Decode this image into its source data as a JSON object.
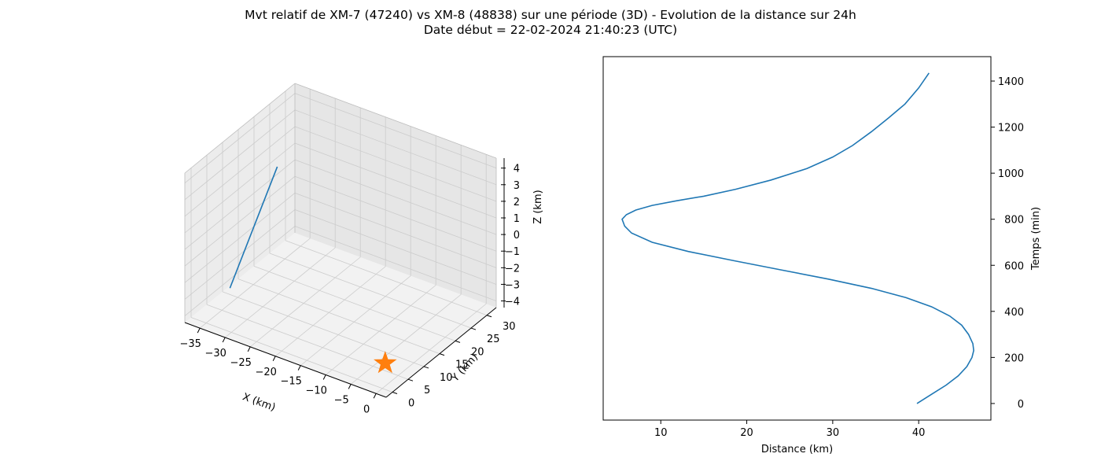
{
  "title": "Mvt relatif de XM-7 (47240) vs XM-8 (48838) sur une période (3D) - Evolution de la distance sur 24h",
  "subtitle": "Date début = 22-02-2024 21:40:23 (UTC)",
  "colors": {
    "line": "#1f77b4",
    "star": "#ff7f0e",
    "grid": "#cccccc",
    "pane": "#f2f2f2"
  },
  "chart_data": [
    {
      "type": "line3d",
      "xlabel": "X (km)",
      "ylabel": "Y (km)",
      "zlabel": "Z (km)",
      "x_ticks": [
        "−35",
        "−30",
        "−25",
        "−20",
        "−15",
        "−10",
        "−5",
        "0"
      ],
      "y_ticks": [
        "0",
        "5",
        "10",
        "15",
        "20",
        "25",
        "30"
      ],
      "z_ticks": [
        "−4",
        "−3",
        "−2",
        "−1",
        "0",
        "1",
        "2",
        "3",
        "4"
      ],
      "xlim": [
        -38,
        2
      ],
      "ylim": [
        -2,
        33
      ],
      "zlim": [
        -4.4,
        4.6
      ],
      "series": [
        {
          "points": [
            [
              -32.6,
              3.7,
              -2.6
            ],
            [
              -27.0,
              9.8,
              4.4
            ]
          ]
        }
      ],
      "marker": {
        "shape": "star",
        "point": [
          -0.5,
          1.7,
          -3.2
        ]
      }
    },
    {
      "type": "line",
      "xlabel": "Distance (km)",
      "ylabel": "Temps (min)",
      "x_ticks": [
        "10",
        "20",
        "30",
        "40"
      ],
      "y_ticks": [
        "0",
        "200",
        "400",
        "600",
        "800",
        "1000",
        "1200",
        "1400"
      ],
      "xlim": [
        3.3,
        48.4
      ],
      "ylim": [
        -72,
        1506
      ],
      "series": [
        {
          "x": [
            39.8,
            41.5,
            43.2,
            44.6,
            45.6,
            46.2,
            46.4,
            46.3,
            45.8,
            45.0,
            43.6,
            41.5,
            38.5,
            34.5,
            29.5,
            24.0,
            18.5,
            13.2,
            9.0,
            6.6,
            5.8,
            5.5,
            6.0,
            7.1,
            9.0,
            11.8,
            15.0,
            18.7,
            22.8,
            27.0,
            30.0,
            32.3,
            34.5,
            36.5,
            38.4,
            40.0,
            41.2
          ],
          "y": [
            0,
            40,
            80,
            120,
            160,
            200,
            230,
            260,
            300,
            340,
            380,
            420,
            460,
            500,
            540,
            580,
            620,
            660,
            700,
            740,
            770,
            800,
            820,
            840,
            860,
            880,
            900,
            930,
            970,
            1020,
            1070,
            1120,
            1180,
            1240,
            1300,
            1370,
            1435
          ]
        }
      ]
    }
  ]
}
